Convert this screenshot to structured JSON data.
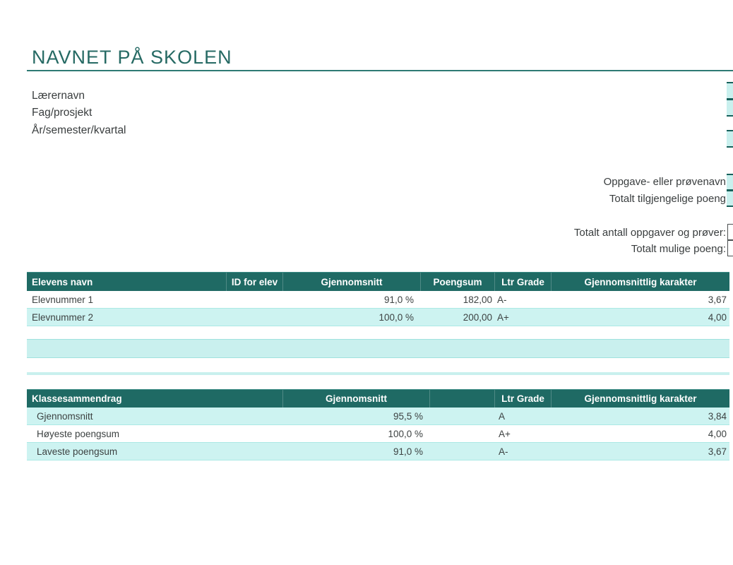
{
  "page": {
    "title": "NAVNET PÅ SKOLEN"
  },
  "info": {
    "teacher_label": "Lærernavn",
    "subject_label": "Fag/prosjekt",
    "term_label": "År/semester/kvartal"
  },
  "assignment": {
    "name_label": "Oppgave- eller prøvenavn",
    "available_points_label": "Totalt tilgjengelige poeng",
    "total_count_label": "Totalt antall oppgaver og prøver:",
    "possible_points_label": "Totalt mulige poeng:"
  },
  "students_table": {
    "headers": {
      "name": "Elevens navn",
      "id": "ID for elev",
      "average": "Gjennomsnitt",
      "points": "Poengsum",
      "ltr_grade": "Ltr Grade",
      "avg_grade": "Gjennomsnittlig karakter"
    },
    "rows": [
      {
        "name": "Elevnummer 1",
        "id": "",
        "average": "91,0 %",
        "points": "182,00",
        "ltr_grade": "A-",
        "avg_grade": "3,67"
      },
      {
        "name": "Elevnummer 2",
        "id": "",
        "average": "100,0 %",
        "points": "200,00",
        "ltr_grade": "A+",
        "avg_grade": "4,00"
      }
    ]
  },
  "summary_table": {
    "headers": {
      "label": "Klassesammendrag",
      "average": "Gjennomsnitt",
      "ltr_grade": "Ltr Grade",
      "avg_grade": "Gjennomsnittlig karakter"
    },
    "rows": [
      {
        "label": "Gjennomsnitt",
        "average": "95,5 %",
        "ltr_grade": "A",
        "avg_grade": "3,84"
      },
      {
        "label": "Høyeste poengsum",
        "average": "100,0 %",
        "ltr_grade": "A+",
        "avg_grade": "4,00"
      },
      {
        "label": "Laveste poengsum",
        "average": "91,0 %",
        "ltr_grade": "A-",
        "avg_grade": "3,67"
      }
    ]
  },
  "colors": {
    "header_teal": "#1F6A64",
    "title_teal": "#266A64",
    "rule_teal": "#2E7A74",
    "row_cyan": "#CDF3F1",
    "band_cyan": "#C9F0EE",
    "text_dark": "#3D4242"
  }
}
